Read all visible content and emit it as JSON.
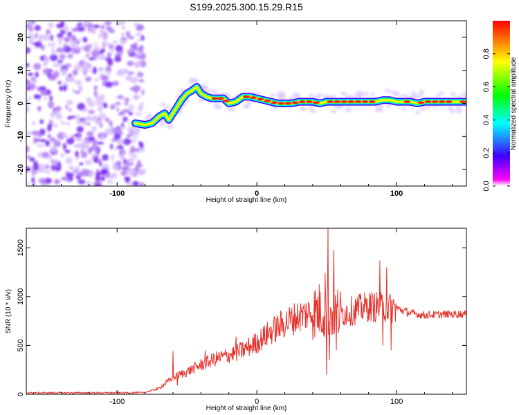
{
  "title": "S199.2025.300.15.29.R15",
  "colors": {
    "snr_line": "#e8312b",
    "axis": "#000000",
    "noise": "#8a3ff0",
    "ridge_core": "#ff1a1a"
  },
  "chart_data": [
    {
      "type": "heatmap",
      "name": "spectrogram",
      "xlabel": "Height of straight line (km)",
      "ylabel": "Frequency (Hz)",
      "xlim": [
        -165,
        150
      ],
      "ylim": [
        -25,
        25
      ],
      "xticks": [
        -100,
        0,
        100
      ],
      "yticks": [
        20,
        10,
        0,
        -10,
        -20
      ],
      "colorbar": {
        "label": "Normalized spectral amplitude",
        "range": [
          0,
          1
        ],
        "ticks": [
          0.0,
          0.2,
          0.4,
          0.6,
          0.8
        ],
        "tick_labels": [
          "0.0",
          "0.2",
          "0.4",
          "0.6",
          "0.8"
        ],
        "colormap": [
          "#ff00ff",
          "#4000ff",
          "#00ffff",
          "#00ff00",
          "#ffff00",
          "#ff0000"
        ]
      },
      "noise_region_x": [
        -165,
        -83
      ],
      "ridge": {
        "x": [
          -87,
          -80,
          -75,
          -70,
          -66,
          -63,
          -60,
          -57,
          -54,
          -50,
          -46,
          -43,
          -40,
          -36,
          -32,
          -28,
          -24,
          -20,
          -15,
          -10,
          -5,
          0,
          5,
          10,
          15,
          20,
          25,
          30,
          35,
          40,
          45,
          50,
          55,
          60,
          65,
          70,
          75,
          80,
          85,
          90,
          95,
          100,
          105,
          110,
          115,
          120,
          125,
          130,
          135,
          140,
          145,
          150
        ],
        "y": [
          -6,
          -6.5,
          -6,
          -4,
          -3,
          -5,
          -3,
          -1,
          1,
          3,
          4,
          5,
          3,
          2,
          1.5,
          1.5,
          1.5,
          0,
          0.5,
          2,
          2,
          1.5,
          1,
          0.5,
          0,
          0,
          0,
          0.5,
          0.5,
          0.5,
          0,
          0.5,
          0.5,
          0.5,
          0.5,
          0.5,
          0.5,
          0.5,
          0.5,
          1,
          1,
          0.5,
          0.5,
          0.5,
          0,
          0.5,
          0.5,
          0.5,
          0.5,
          0.5,
          0.5,
          0.5
        ],
        "amp": [
          0.4,
          0.5,
          0.4,
          0.3,
          0.35,
          0.35,
          0.4,
          0.35,
          0.45,
          0.45,
          0.45,
          0.35,
          0.5,
          0.6,
          0.95,
          0.95,
          0.8,
          0.3,
          0.5,
          0.8,
          0.85,
          0.85,
          0.9,
          0.9,
          0.85,
          0.9,
          0.85,
          0.95,
          0.9,
          0.95,
          0.6,
          0.85,
          0.9,
          0.9,
          0.8,
          0.85,
          0.85,
          0.8,
          0.6,
          0.5,
          0.5,
          0.7,
          0.95,
          0.6,
          0.95,
          0.8,
          0.8,
          0.9,
          0.8,
          0.75,
          0.8,
          0.8
        ]
      }
    },
    {
      "type": "line",
      "name": "snr",
      "xlabel": "Height of straight line (km)",
      "ylabel": "SNR (10 * v/v)",
      "xlim": [
        -165,
        150
      ],
      "ylim": [
        0,
        1700
      ],
      "xticks": [
        -100,
        0,
        100
      ],
      "yticks": [
        0,
        500,
        1000,
        1500
      ],
      "envelope": {
        "x": [
          -165,
          -90,
          -80,
          -70,
          -60,
          -50,
          -40,
          -30,
          -20,
          -10,
          0,
          10,
          20,
          30,
          40,
          45,
          50,
          55,
          60,
          70,
          80,
          90,
          100,
          110,
          120,
          130,
          140,
          150
        ],
        "y": [
          15,
          15,
          20,
          60,
          170,
          230,
          300,
          360,
          400,
          450,
          530,
          640,
          730,
          800,
          840,
          860,
          850,
          840,
          830,
          860,
          900,
          890,
          880,
          830,
          810,
          815,
          820,
          820
        ]
      },
      "spikes": [
        {
          "x": -60,
          "y": 440
        },
        {
          "x": -57,
          "y": 90
        },
        {
          "x": -37,
          "y": 450
        },
        {
          "x": -15,
          "y": 590
        },
        {
          "x": 49,
          "y": 1240
        },
        {
          "x": 50,
          "y": 200
        },
        {
          "x": 51,
          "y": 1700
        },
        {
          "x": 52,
          "y": 350
        },
        {
          "x": 55,
          "y": 1480
        },
        {
          "x": 57,
          "y": 450
        },
        {
          "x": 88,
          "y": 1370
        },
        {
          "x": 90,
          "y": 500
        },
        {
          "x": 93,
          "y": 1300
        },
        {
          "x": 96,
          "y": 450
        }
      ]
    }
  ]
}
